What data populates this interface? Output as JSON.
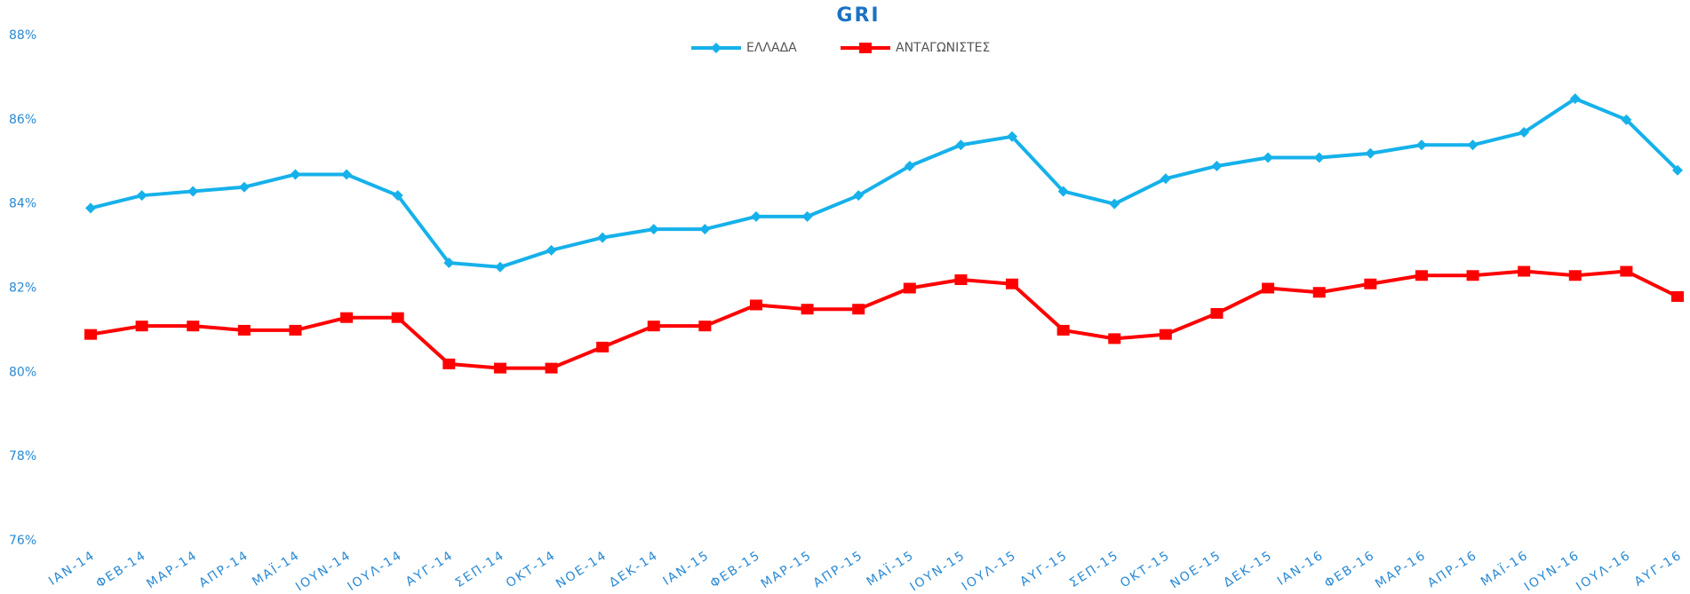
{
  "chart_data": {
    "type": "line",
    "title": "GRI",
    "categories": [
      "ΙΑΝ-14",
      "ΦΕΒ-14",
      "ΜΑΡ-14",
      "ΑΠΡ-14",
      "ΜΑΪ-14",
      "ΙΟΥΝ-14",
      "ΙΟΥΛ-14",
      "ΑΥΓ-14",
      "ΣΕΠ-14",
      "ΟΚΤ-14",
      "ΝΟΕ-14",
      "ΔΕΚ-14",
      "ΙΑΝ-15",
      "ΦΕΒ-15",
      "ΜΑΡ-15",
      "ΑΠΡ-15",
      "ΜΑΪ-15",
      "ΙΟΥΝ-15",
      "ΙΟΥΛ-15",
      "ΑΥΓ-15",
      "ΣΕΠ-15",
      "ΟΚΤ-15",
      "ΝΟΕ-15",
      "ΔΕΚ-15",
      "ΙΑΝ-16",
      "ΦΕΒ-16",
      "ΜΑΡ-16",
      "ΑΠΡ-16",
      "ΜΑΪ-16",
      "ΙΟΥΝ-16",
      "ΙΟΥΛ-16",
      "ΑΥΓ-16"
    ],
    "series": [
      {
        "name": "ΕΛΛΑΔΑ",
        "color": "#16b1ea",
        "marker": "diamond",
        "values": [
          83.9,
          84.2,
          84.3,
          84.4,
          84.7,
          84.7,
          84.2,
          82.6,
          82.5,
          82.9,
          83.2,
          83.4,
          83.4,
          83.7,
          83.7,
          84.2,
          84.9,
          85.4,
          85.6,
          84.3,
          84.0,
          84.6,
          84.9,
          85.1,
          85.1,
          85.2,
          85.4,
          85.4,
          85.7,
          86.5,
          86.0,
          84.8
        ]
      },
      {
        "name": "ΑΝΤΑΓΩΝΙΣΤΕΣ",
        "color": "#ff0000",
        "marker": "square",
        "values": [
          80.9,
          81.1,
          81.1,
          81.0,
          81.0,
          81.3,
          81.3,
          80.2,
          80.1,
          80.1,
          80.6,
          81.1,
          81.1,
          81.6,
          81.5,
          81.5,
          82.0,
          82.2,
          82.1,
          81.0,
          80.8,
          80.9,
          81.4,
          82.0,
          81.9,
          82.1,
          82.3,
          82.3,
          82.4,
          82.3,
          82.4,
          81.8
        ]
      }
    ],
    "ylim": [
      76,
      88
    ],
    "yticks": [
      {
        "value": 76,
        "label": "76%"
      },
      {
        "value": 78,
        "label": "78%"
      },
      {
        "value": 80,
        "label": "80%"
      },
      {
        "value": 82,
        "label": "82%"
      },
      {
        "value": 84,
        "label": "84%"
      },
      {
        "value": 86,
        "label": "86%"
      },
      {
        "value": 88,
        "label": "88%"
      }
    ],
    "grid": false,
    "legend": "top"
  }
}
